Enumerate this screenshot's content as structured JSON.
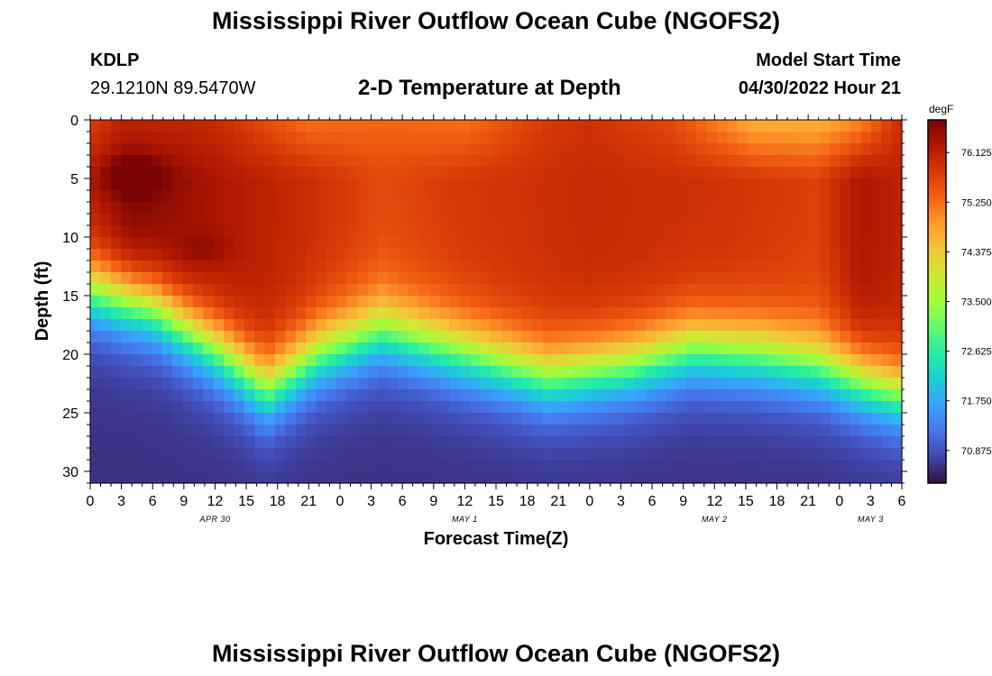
{
  "header": {
    "title": "Mississippi River Outflow Ocean Cube (NGOFS2)",
    "station": "KDLP",
    "coords": "29.1210N  89.5470W",
    "plot_title": "2-D Temperature at Depth",
    "model_start_label": "Model Start Time",
    "model_start_value": "04/30/2022 Hour 21"
  },
  "footer": {
    "title": "Mississippi River Outflow Ocean Cube (NGOFS2)"
  },
  "chart_data": {
    "type": "heatmap",
    "title": "2-D Temperature at Depth",
    "xlabel": "Forecast Time(Z)",
    "ylabel": "Depth (ft)",
    "x_ticks": [
      "0",
      "3",
      "6",
      "9",
      "12",
      "15",
      "18",
      "21",
      "0",
      "3",
      "6",
      "9",
      "12",
      "15",
      "18",
      "21",
      "0",
      "3",
      "6",
      "9",
      "12",
      "15",
      "18",
      "21",
      "0",
      "3",
      "6"
    ],
    "x_range_hours": [
      0,
      78
    ],
    "date_labels": [
      {
        "label": "APR 30",
        "hour": 12
      },
      {
        "label": "MAY 1",
        "hour": 36
      },
      {
        "label": "MAY 2",
        "hour": 60
      },
      {
        "label": "MAY 3",
        "hour": 75
      }
    ],
    "y_ticks": [
      0,
      5,
      10,
      15,
      20,
      25,
      30
    ],
    "ylim": [
      0,
      31
    ],
    "colorbar": {
      "unit": "degF",
      "tick_labels": [
        "76.125",
        "75.250",
        "74.375",
        "73.500",
        "72.625",
        "71.750",
        "70.875"
      ],
      "tick_values": [
        76.125,
        75.25,
        74.375,
        73.5,
        72.625,
        71.75,
        70.875
      ],
      "range": [
        70.3,
        76.7
      ],
      "colormap": [
        "#30123b",
        "#4145ab",
        "#4675ed",
        "#39a2fc",
        "#1bcfd4",
        "#24eca6",
        "#61fc6c",
        "#a4fc3b",
        "#d1e834",
        "#f3c63a",
        "#fe9b2d",
        "#f36315",
        "#d93806",
        "#b11901",
        "#7a0403"
      ]
    },
    "grid_cols": 79,
    "grid_rows": 31,
    "thermocline_depth_ft": [
      {
        "hour": 0,
        "depth": 12.0
      },
      {
        "hour": 6,
        "depth": 13.5
      },
      {
        "hour": 12,
        "depth": 17.0
      },
      {
        "hour": 17,
        "depth": 20.5
      },
      {
        "hour": 22,
        "depth": 17.5
      },
      {
        "hour": 28,
        "depth": 15.5
      },
      {
        "hour": 36,
        "depth": 17.5
      },
      {
        "hour": 44,
        "depth": 19.5
      },
      {
        "hour": 52,
        "depth": 18.5
      },
      {
        "hour": 58,
        "depth": 17.0
      },
      {
        "hour": 64,
        "depth": 17.5
      },
      {
        "hour": 70,
        "depth": 18.5
      },
      {
        "hour": 78,
        "depth": 21.0
      }
    ],
    "surface_temp_degF": [
      {
        "hour": 0,
        "value": 75.7
      },
      {
        "hour": 3,
        "value": 76.1
      },
      {
        "hour": 12,
        "value": 76.0
      },
      {
        "hour": 21,
        "value": 75.2
      },
      {
        "hour": 28,
        "value": 75.3
      },
      {
        "hour": 36,
        "value": 75.2
      },
      {
        "hour": 44,
        "value": 75.8
      },
      {
        "hour": 48,
        "value": 75.9
      },
      {
        "hour": 56,
        "value": 75.6
      },
      {
        "hour": 64,
        "value": 74.6
      },
      {
        "hour": 70,
        "value": 74.6
      },
      {
        "hour": 74,
        "value": 75.0
      },
      {
        "hour": 78,
        "value": 76.0
      }
    ],
    "mixed_layer_temp_degF": [
      {
        "hour": 0,
        "value": 76.2
      },
      {
        "hour": 4,
        "value": 76.7
      },
      {
        "hour": 12,
        "value": 76.3
      },
      {
        "hour": 20,
        "value": 76.0
      },
      {
        "hour": 28,
        "value": 75.6
      },
      {
        "hour": 36,
        "value": 75.8
      },
      {
        "hour": 48,
        "value": 76.0
      },
      {
        "hour": 60,
        "value": 75.9
      },
      {
        "hour": 70,
        "value": 75.7
      },
      {
        "hour": 74,
        "value": 76.3
      },
      {
        "hour": 78,
        "value": 76.1
      }
    ],
    "bottom_temp_degF": 70.6
  }
}
